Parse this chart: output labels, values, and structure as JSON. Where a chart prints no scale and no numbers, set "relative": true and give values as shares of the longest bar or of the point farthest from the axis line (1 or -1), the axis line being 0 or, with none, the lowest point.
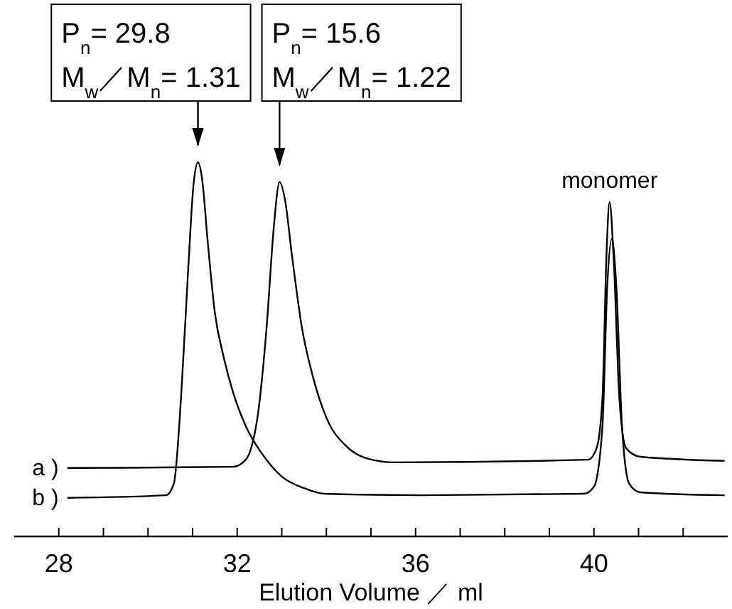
{
  "chart_data": {
    "type": "line",
    "relative": true,
    "xlabel": "Elution Volume ／ ml",
    "xlim": [
      27,
      43
    ],
    "xticks": [
      28,
      {
        "value": 29,
        "label": null
      },
      {
        "value": 30,
        "label": null
      },
      {
        "value": 31,
        "label": null
      },
      32,
      {
        "value": 33,
        "label": null
      },
      {
        "value": 34,
        "label": null
      },
      {
        "value": 35,
        "label": null
      },
      36,
      {
        "value": 37,
        "label": null
      },
      {
        "value": 38,
        "label": null
      },
      {
        "value": 39,
        "label": null
      },
      40,
      {
        "value": 41,
        "label": null
      },
      {
        "value": 42,
        "label": null
      }
    ],
    "series": [
      {
        "name": "a )",
        "color": "#000000",
        "x": [
          28.19,
          31.9,
          32.13,
          32.28,
          32.47,
          32.66,
          32.82,
          32.95,
          33.07,
          33.23,
          33.45,
          33.7,
          34.02,
          34.43,
          34.9,
          35.53,
          39.87,
          40.06,
          40.19,
          40.28,
          40.35,
          40.44,
          40.57,
          40.72,
          41.04,
          42.93
        ],
        "values": [
          0.183,
          0.186,
          0.198,
          0.224,
          0.331,
          0.559,
          0.825,
          0.947,
          0.901,
          0.749,
          0.559,
          0.426,
          0.312,
          0.243,
          0.209,
          0.198,
          0.205,
          0.236,
          0.369,
          0.749,
          0.894,
          0.749,
          0.369,
          0.236,
          0.213,
          0.202
        ]
      },
      {
        "name": "b )",
        "color": "#000000",
        "x": [
          28.19,
          30.4,
          30.58,
          30.74,
          30.9,
          31.02,
          31.12,
          31.21,
          31.34,
          31.5,
          31.69,
          31.9,
          32.2,
          32.54,
          33.0,
          33.5,
          33.95,
          36.16,
          39.78,
          40.0,
          40.19,
          40.3,
          40.4,
          40.5,
          40.63,
          40.79,
          41.04,
          42.93
        ],
        "values": [
          0.103,
          0.11,
          0.141,
          0.369,
          0.711,
          0.939,
          1,
          0.958,
          0.787,
          0.597,
          0.483,
          0.388,
          0.293,
          0.224,
          0.16,
          0.129,
          0.114,
          0.11,
          0.114,
          0.133,
          0.293,
          0.673,
          0.795,
          0.673,
          0.293,
          0.141,
          0.118,
          0.11
        ]
      }
    ],
    "annotations": [
      {
        "text": "P$_{n}$= 29.8\nM$_{w}$／M$_{n}$= 1.31",
        "x": 31.12,
        "y": 1
      },
      {
        "text": "P$_{n}$= 15.6\nM$_{w}$／M$_{n}$= 1.22",
        "x": 32.95,
        "y": 0.947
      },
      {
        "text": "monomer",
        "x": 40.35,
        "y": 0.894
      }
    ]
  }
}
